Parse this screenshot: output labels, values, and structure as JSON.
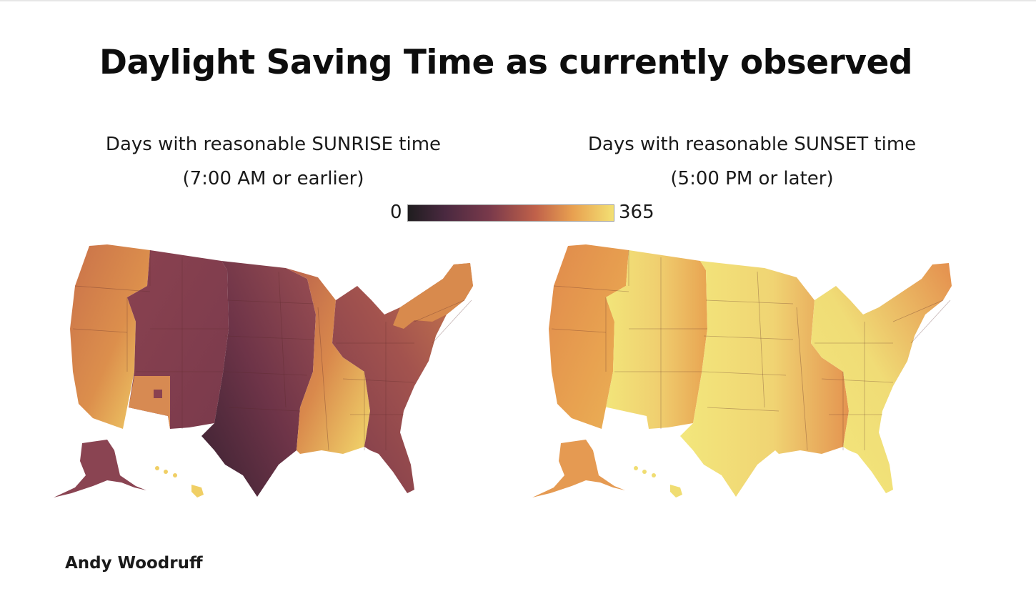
{
  "title": "Daylight Saving Time as currently observed",
  "left_map": {
    "title_line1": "Days with reasonable SUNRISE time",
    "title_line2": "(7:00 AM or earlier)"
  },
  "right_map": {
    "title_line1": "Days with reasonable SUNSET time",
    "title_line2": "(5:00 PM or later)"
  },
  "legend": {
    "min_label": "0",
    "max_label": "365",
    "colors": [
      "#1f1d1f",
      "#4a2940",
      "#7a3a4b",
      "#c0614a",
      "#e8a050",
      "#f3e073"
    ]
  },
  "credit": "Andy Woodruff"
}
